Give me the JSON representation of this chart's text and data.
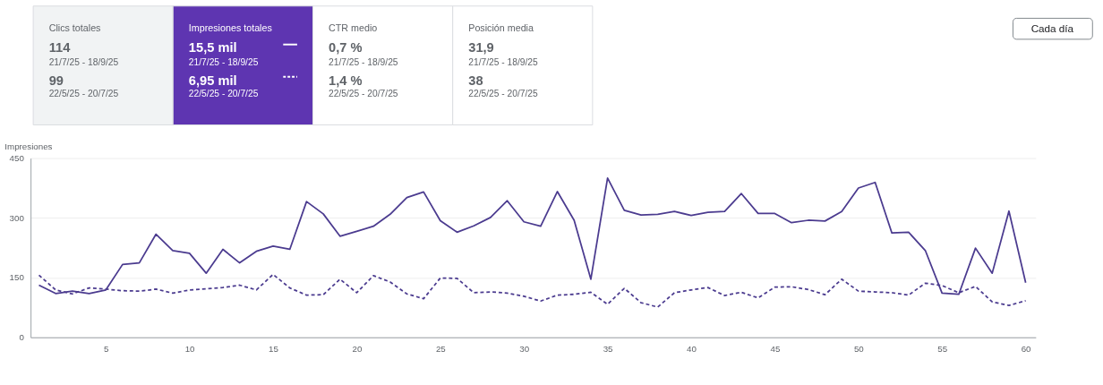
{
  "chart_data": [
    {
      "type": "other",
      "colors": [
        "#f1f3f4",
        "#5e35b1",
        "#ffffff",
        "#ffffff"
      ],
      "annotations": [
        "Clics totales",
        "114",
        "21/7/25 - 18/9/25",
        "99",
        "22/5/25 - 20/7/25",
        "Impresiones totales",
        "15,5 mil",
        "21/7/25 - 18/9/25",
        "6,95 mil",
        "22/5/25 - 20/7/25",
        "CTR medio",
        "0,7 %",
        "21/7/25 - 18/9/25",
        "1,4 %",
        "22/5/25 - 20/7/25",
        "Posición media",
        "31,9",
        "21/7/25 - 18/9/25",
        "38",
        "22/5/25 - 20/7/25",
        "Cada día"
      ]
    },
    {
      "type": "line",
      "ylabel": "Impresiones",
      "x": [
        1,
        2,
        3,
        4,
        5,
        6,
        7,
        8,
        9,
        10,
        11,
        12,
        13,
        14,
        15,
        16,
        17,
        18,
        19,
        20,
        21,
        22,
        23,
        24,
        25,
        26,
        27,
        28,
        29,
        30,
        31,
        32,
        33,
        34,
        35,
        36,
        37,
        38,
        39,
        40,
        41,
        42,
        43,
        44,
        45,
        46,
        47,
        48,
        49,
        50,
        51,
        52,
        53,
        54,
        55,
        56,
        57,
        58,
        59,
        60
      ],
      "series": [
        {
          "color": "#4b3b8f",
          "line_style": "solid",
          "values": [
            131,
            110,
            116,
            110,
            119,
            183,
            187,
            259,
            218,
            211,
            161,
            221,
            187,
            216,
            229,
            221,
            341,
            310,
            254,
            266,
            279,
            309,
            351,
            365,
            293,
            264,
            280,
            301,
            343,
            290,
            279,
            366,
            294,
            146,
            400,
            319,
            307,
            309,
            316,
            306,
            314,
            316,
            361,
            311,
            311,
            288,
            294,
            292,
            316,
            375,
            389,
            262,
            264,
            218,
            111,
            108,
            224,
            161,
            317,
            137
          ]
        },
        {
          "color": "#4b3b8f",
          "line_style": "dashed",
          "values": [
            156,
            119,
            109,
            124,
            121,
            117,
            116,
            121,
            111,
            119,
            122,
            125,
            131,
            119,
            158,
            124,
            106,
            107,
            146,
            112,
            155,
            139,
            109,
            97,
            149,
            148,
            112,
            114,
            111,
            103,
            91,
            106,
            108,
            113,
            83,
            123,
            87,
            76,
            112,
            119,
            125,
            105,
            113,
            99,
            126,
            127,
            120,
            107,
            146,
            116,
            114,
            112,
            106,
            136,
            130,
            112,
            128,
            89,
            80,
            92
          ]
        }
      ],
      "xlim": [
        0.5,
        60.6
      ],
      "xticks": [
        5,
        10,
        15,
        20,
        25,
        30,
        35,
        40,
        45,
        50,
        55,
        60
      ],
      "ylim": [
        0,
        450
      ],
      "yticks": [
        0,
        150,
        300,
        450
      ],
      "grid": "y",
      "legend": false
    }
  ]
}
